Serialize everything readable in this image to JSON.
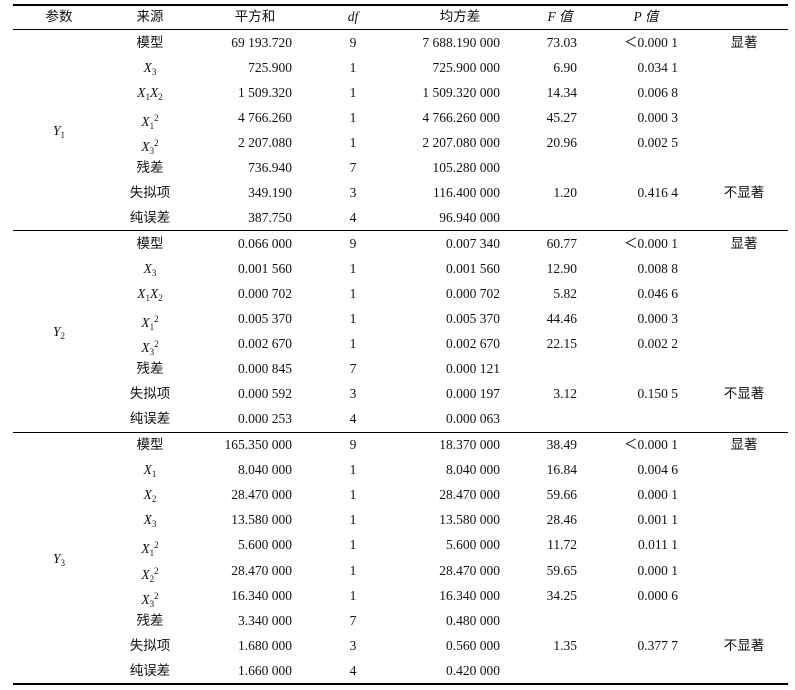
{
  "headers": {
    "param": "参数",
    "source": "来源",
    "ss": "平方和",
    "df": "df",
    "ms": "均方差",
    "f": "F 值",
    "p": "P 值"
  },
  "groups": [
    {
      "param": {
        "base": "Y",
        "sub": "1"
      },
      "rows": [
        {
          "source": "模型",
          "ss": "69 193.720",
          "df": "9",
          "ms": "7  688.190  000",
          "f": "73.03",
          "p": "＜0.000 1",
          "sig": "显著"
        },
        {
          "source": {
            "terms": [
              {
                "base": "X",
                "sub": "3"
              }
            ]
          },
          "ss": "725.900",
          "df": "1",
          "ms": "725.900  000",
          "f": "6.90",
          "p": "0.034 1",
          "sig": ""
        },
        {
          "source": {
            "terms": [
              {
                "base": "X",
                "sub": "1"
              },
              {
                "base": "X",
                "sub": "2"
              }
            ]
          },
          "ss": "1 509.320",
          "df": "1",
          "ms": "1  509.320  000",
          "f": "14.34",
          "p": "0.006 8",
          "sig": ""
        },
        {
          "source": {
            "terms": [
              {
                "base": "X",
                "sub": "1",
                "sup": "2"
              }
            ]
          },
          "ss": "4 766.260",
          "df": "1",
          "ms": "4  766.260  000",
          "f": "45.27",
          "p": "0.000 3",
          "sig": ""
        },
        {
          "source": {
            "terms": [
              {
                "base": "X",
                "sub": "3",
                "sup": "2"
              }
            ]
          },
          "ss": "2 207.080",
          "df": "1",
          "ms": "2  207.080  000",
          "f": "20.96",
          "p": "0.002 5",
          "sig": ""
        },
        {
          "source": "残差",
          "ss": "736.940",
          "df": "7",
          "ms": "105.280  000",
          "f": "",
          "p": "",
          "sig": ""
        },
        {
          "source": "失拟项",
          "ss": "349.190",
          "df": "3",
          "ms": "116.400  000",
          "f": "1.20",
          "p": "0.416 4",
          "sig": "不显著"
        },
        {
          "source": "纯误差",
          "ss": "387.750",
          "df": "4",
          "ms": "96.940  000",
          "f": "",
          "p": "",
          "sig": ""
        }
      ]
    },
    {
      "param": {
        "base": "Y",
        "sub": "2"
      },
      "rows": [
        {
          "source": "模型",
          "ss": "0.066  000",
          "df": "9",
          "ms": "0.007 340",
          "f": "60.77",
          "p": "＜0.000 1",
          "sig": "显著"
        },
        {
          "source": {
            "terms": [
              {
                "base": "X",
                "sub": "3"
              }
            ]
          },
          "ss": "0.001 560",
          "df": "1",
          "ms": "0.001 560",
          "f": "12.90",
          "p": "0.008 8",
          "sig": ""
        },
        {
          "source": {
            "terms": [
              {
                "base": "X",
                "sub": "1"
              },
              {
                "base": "X",
                "sub": "2"
              }
            ]
          },
          "ss": "0.000 702",
          "df": "1",
          "ms": "0.000 702",
          "f": "5.82",
          "p": "0.046 6",
          "sig": ""
        },
        {
          "source": {
            "terms": [
              {
                "base": "X",
                "sub": "1",
                "sup": "2"
              }
            ]
          },
          "ss": "0.005 370",
          "df": "1",
          "ms": "0.005 370",
          "f": "44.46",
          "p": "0.000 3",
          "sig": ""
        },
        {
          "source": {
            "terms": [
              {
                "base": "X",
                "sub": "3",
                "sup": "2"
              }
            ]
          },
          "ss": "0.002 670",
          "df": "1",
          "ms": "0.002 670",
          "f": "22.15",
          "p": "0.002 2",
          "sig": ""
        },
        {
          "source": "残差",
          "ss": "0.000 845",
          "df": "7",
          "ms": "0.000 121",
          "f": "",
          "p": "",
          "sig": ""
        },
        {
          "source": "失拟项",
          "ss": "0.000 592",
          "df": "3",
          "ms": "0.000 197",
          "f": "3.12",
          "p": "0.150 5",
          "sig": "不显著"
        },
        {
          "source": "纯误差",
          "ss": "0.000 253",
          "df": "4",
          "ms": "0.000 063",
          "f": "",
          "p": "",
          "sig": ""
        }
      ]
    },
    {
      "param": {
        "base": "Y",
        "sub": "3"
      },
      "rows": [
        {
          "source": "模型",
          "ss": "165.350  000",
          "df": "9",
          "ms": "18.370  000",
          "f": "38.49",
          "p": "＜0.000 1",
          "sig": "显著"
        },
        {
          "source": {
            "terms": [
              {
                "base": "X",
                "sub": "1"
              }
            ]
          },
          "ss": "8.040  000",
          "df": "1",
          "ms": "8.040  000",
          "f": "16.84",
          "p": "0.004 6",
          "sig": ""
        },
        {
          "source": {
            "terms": [
              {
                "base": "X",
                "sub": "2"
              }
            ]
          },
          "ss": "28.470  000",
          "df": "1",
          "ms": "28.470  000",
          "f": "59.66",
          "p": "0.000 1",
          "sig": ""
        },
        {
          "source": {
            "terms": [
              {
                "base": "X",
                "sub": "3"
              }
            ]
          },
          "ss": "13.580  000",
          "df": "1",
          "ms": "13.580  000",
          "f": "28.46",
          "p": "0.001 1",
          "sig": ""
        },
        {
          "source": {
            "terms": [
              {
                "base": "X",
                "sub": "1",
                "sup": "2"
              }
            ]
          },
          "ss": "5.600  000",
          "df": "1",
          "ms": "5.600  000",
          "f": "11.72",
          "p": "0.011 1",
          "sig": ""
        },
        {
          "source": {
            "terms": [
              {
                "base": "X",
                "sub": "2",
                "sup": "2"
              }
            ]
          },
          "ss": "28.470  000",
          "df": "1",
          "ms": "28.470  000",
          "f": "59.65",
          "p": "0.000 1",
          "sig": ""
        },
        {
          "source": {
            "terms": [
              {
                "base": "X",
                "sub": "3",
                "sup": "2"
              }
            ]
          },
          "ss": "16.340  000",
          "df": "1",
          "ms": "16.340  000",
          "f": "34.25",
          "p": "0.000 6",
          "sig": ""
        },
        {
          "source": "残差",
          "ss": "3.340  000",
          "df": "7",
          "ms": "0.480  000",
          "f": "",
          "p": "",
          "sig": ""
        },
        {
          "source": "失拟项",
          "ss": "1.680  000",
          "df": "3",
          "ms": "0.560  000",
          "f": "1.35",
          "p": "0.377 7",
          "sig": "不显著"
        },
        {
          "source": "纯误差",
          "ss": "1.660  000",
          "df": "4",
          "ms": "0.420  000",
          "f": "",
          "p": "",
          "sig": ""
        }
      ]
    }
  ]
}
